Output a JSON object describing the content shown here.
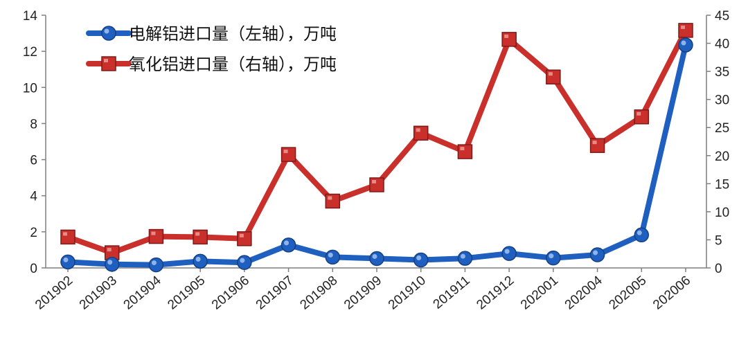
{
  "chart_data": {
    "type": "line",
    "categories": [
      "201902",
      "201903",
      "201904",
      "201905",
      "201906",
      "201907",
      "201908",
      "201909",
      "201910",
      "201911",
      "201912",
      "202001",
      "202004",
      "202005",
      "202006"
    ],
    "series": [
      {
        "name": "电解铝进口量（左轴），万吨",
        "axis": "left",
        "color": "#1f5fbf",
        "marker": "circle",
        "values": [
          0.33,
          0.2,
          0.17,
          0.37,
          0.3,
          1.27,
          0.6,
          0.52,
          0.44,
          0.53,
          0.8,
          0.55,
          0.73,
          1.83,
          12.35
        ]
      },
      {
        "name": "氧化铝进口量（右轴），万吨",
        "axis": "right",
        "color": "#c9302c",
        "marker": "square",
        "values": [
          5.5,
          2.7,
          5.6,
          5.5,
          5.2,
          20.2,
          11.9,
          14.8,
          24.0,
          20.7,
          40.7,
          34.0,
          21.8,
          26.9,
          42.3
        ]
      }
    ],
    "y_left": {
      "lim": [
        0,
        14
      ],
      "ticks": [
        "0",
        "2",
        "4",
        "6",
        "8",
        "10",
        "12",
        "14"
      ]
    },
    "y_right": {
      "lim": [
        0,
        45
      ],
      "ticks": [
        "0",
        "5",
        "10",
        "15",
        "20",
        "25",
        "30",
        "35",
        "40",
        "45"
      ]
    },
    "title": "",
    "xlabel": "",
    "ylabel": "",
    "grid": false,
    "legend_position": "top-left"
  }
}
